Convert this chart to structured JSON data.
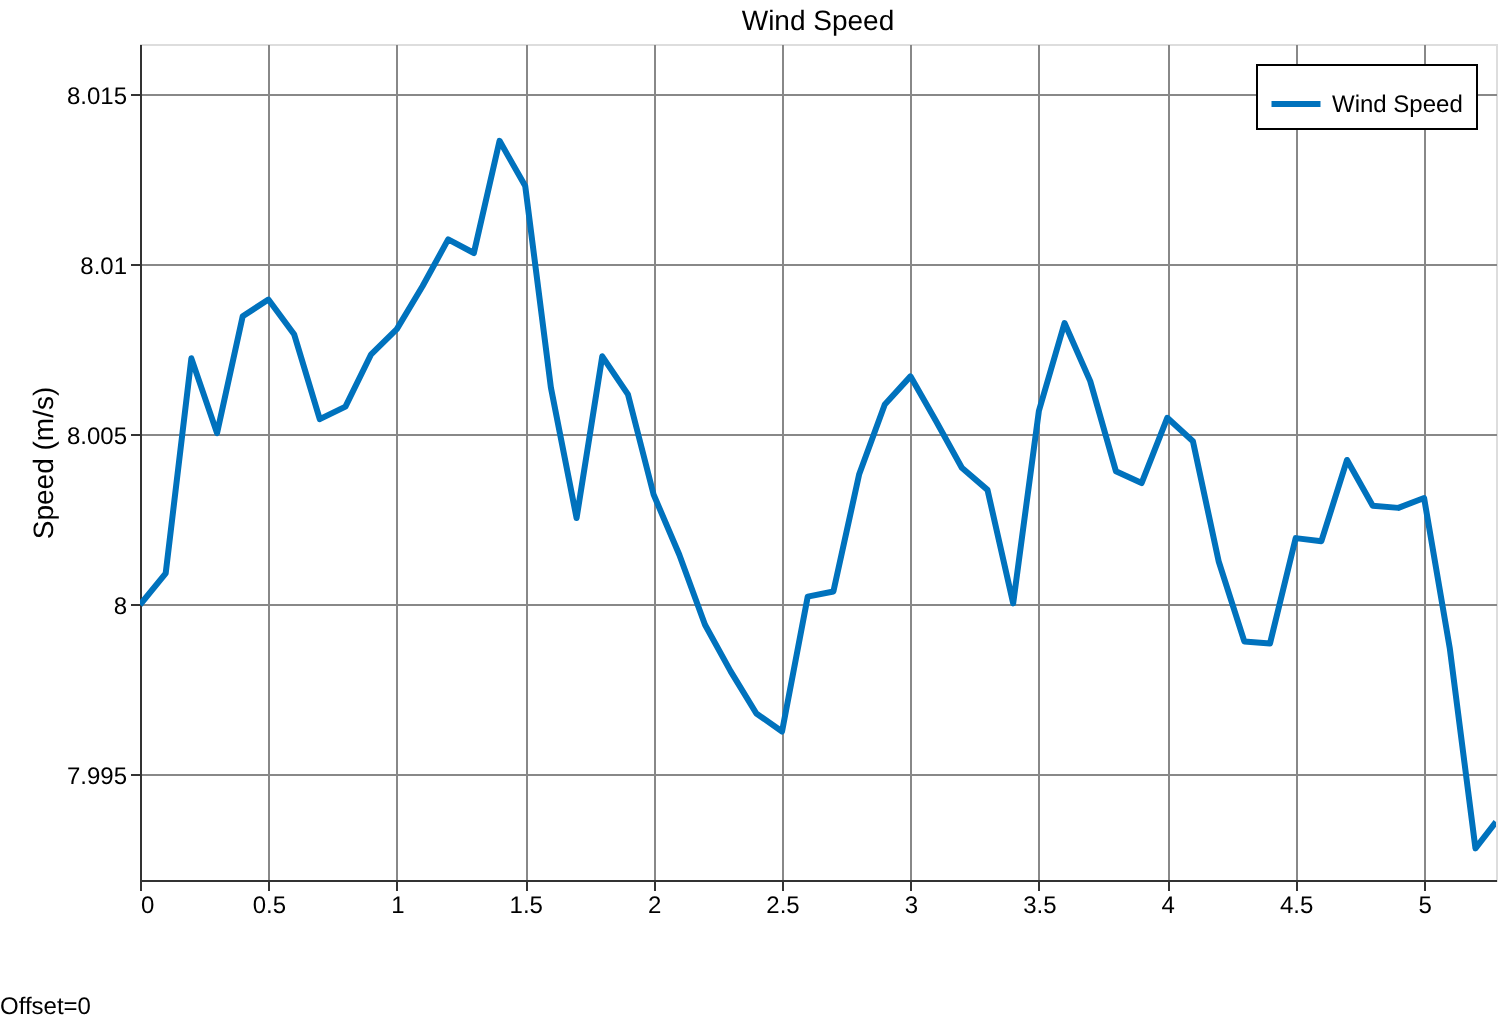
{
  "chart_data": {
    "type": "line",
    "title": "Wind Speed",
    "ylabel": "Speed (m/s)",
    "annotations": [
      "Offset=0"
    ],
    "x": [
      0,
      0.1,
      0.2,
      0.3,
      0.4,
      0.5,
      0.6,
      0.7,
      0.8,
      0.9,
      1.0,
      1.1,
      1.2,
      1.3,
      1.4,
      1.5,
      1.6,
      1.7,
      1.8,
      1.9,
      2.0,
      2.1,
      2.2,
      2.3,
      2.4,
      2.5,
      2.6,
      2.7,
      2.8,
      2.9,
      3.0,
      3.1,
      3.2,
      3.3,
      3.4,
      3.5,
      3.6,
      3.7,
      3.8,
      3.9,
      4.0,
      4.1,
      4.2,
      4.3,
      4.4,
      4.5,
      4.6,
      4.7,
      4.8,
      4.9,
      5.0,
      5.1,
      5.2,
      5.28
    ],
    "series": [
      {
        "name": "Wind Speed",
        "color": "#0072bd",
        "values": [
          8.0,
          8.00092,
          8.00725,
          8.00505,
          8.00849,
          8.00898,
          8.00796,
          8.00546,
          8.00583,
          8.00737,
          8.00811,
          8.00937,
          8.01075,
          8.01035,
          8.01365,
          8.01232,
          8.00639,
          8.00255,
          8.00731,
          8.00619,
          8.00324,
          8.00147,
          7.99941,
          7.99804,
          7.9968,
          7.99627,
          8.00024,
          8.00039,
          8.00383,
          8.00589,
          8.00672,
          8.0054,
          8.00403,
          8.00338,
          8.00004,
          8.0057,
          8.00829,
          8.00658,
          8.00393,
          8.00358,
          8.0055,
          8.00481,
          8.00128,
          7.99892,
          7.99886,
          8.00196,
          8.00187,
          8.00426,
          8.00291,
          8.00285,
          8.00314,
          7.99872,
          7.99283,
          7.99361
        ]
      }
    ],
    "xlim": [
      0,
      5.28
    ],
    "ylim": [
      7.9919,
      8.0165
    ],
    "xticks": [
      0,
      0.5,
      1,
      1.5,
      2,
      2.5,
      3,
      3.5,
      4,
      4.5,
      5
    ],
    "yticks": [
      7.995,
      8,
      8.005,
      8.01,
      8.015
    ],
    "grid": true,
    "legend": "top right",
    "marker": "none",
    "line_style": "solid"
  }
}
